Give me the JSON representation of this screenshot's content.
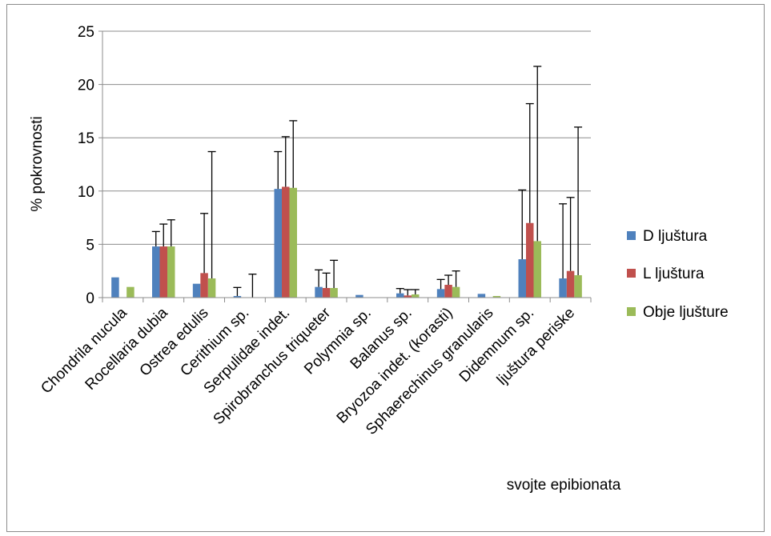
{
  "chart_data": {
    "type": "bar",
    "title": "",
    "xlabel": "svojte epibionata",
    "ylabel": "% pokrovnosti",
    "ylim": [
      0,
      25
    ],
    "yticks": [
      0,
      5,
      10,
      15,
      20,
      25
    ],
    "grid": "horizontal",
    "legend_position": "right",
    "error_bars": "upper",
    "categories": [
      "Chondrila nucula",
      "Rocellaria dubia",
      "Ostrea edulis",
      "Cerithium sp.",
      "Serpulidae indet.",
      "Spirobranchus triqueter",
      "Polymnia sp.",
      "Balanus sp.",
      "Bryozoa indet. (korasti)",
      "Sphaerechinus granularis",
      "Didemnum sp.",
      "ljuštura periske"
    ],
    "series": [
      {
        "name": "D ljuštura",
        "color": "#4F81BD",
        "values": [
          1.9,
          4.8,
          1.3,
          0.15,
          10.2,
          1.0,
          0.25,
          0.4,
          0.8,
          0.35,
          3.6,
          1.8
        ],
        "errors": [
          null,
          1.4,
          null,
          0.8,
          3.5,
          1.6,
          null,
          0.45,
          0.9,
          null,
          6.5,
          7.0
        ]
      },
      {
        "name": "L ljuštura",
        "color": "#C0504D",
        "values": [
          0,
          4.8,
          2.3,
          0,
          10.4,
          0.9,
          0,
          0.2,
          1.2,
          0,
          7.0,
          2.5
        ],
        "errors": [
          null,
          2.1,
          5.6,
          null,
          4.7,
          1.4,
          null,
          0.55,
          0.9,
          null,
          11.2,
          6.9
        ]
      },
      {
        "name": "Obje ljušture",
        "color": "#9BBB59",
        "values": [
          1.0,
          4.8,
          1.8,
          0,
          10.3,
          0.9,
          0,
          0.3,
          1.0,
          0.15,
          5.3,
          2.1
        ],
        "errors": [
          null,
          2.5,
          11.9,
          2.2,
          6.3,
          2.6,
          null,
          0.45,
          1.5,
          null,
          16.4,
          13.9
        ]
      }
    ]
  }
}
